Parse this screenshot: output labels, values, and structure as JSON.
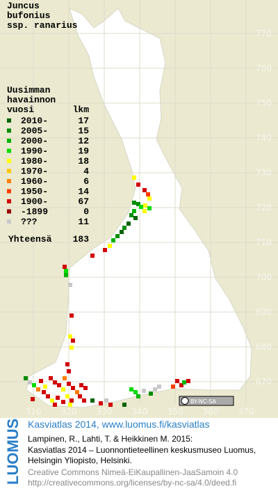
{
  "title": [
    "Juncus",
    "bufonius",
    "ssp. ranarius"
  ],
  "legend": {
    "header": [
      "Uusimman",
      "havainnon"
    ],
    "col_year": "vuosi",
    "col_count": "lkm",
    "items": [
      {
        "label": "2010-",
        "count": "17",
        "color": "#006400"
      },
      {
        "label": "2005-",
        "count": "15",
        "color": "#008c00"
      },
      {
        "label": "2000-",
        "count": "12",
        "color": "#00b400"
      },
      {
        "label": "1990-",
        "count": "19",
        "color": "#00dc00"
      },
      {
        "label": "1980-",
        "count": "18",
        "color": "#ffff00"
      },
      {
        "label": "1970-",
        "count": "4",
        "color": "#ffc800"
      },
      {
        "label": "1960-",
        "count": "6",
        "color": "#ff8000"
      },
      {
        "label": "1950-",
        "count": "14",
        "color": "#ff3c00"
      },
      {
        "label": "1900-",
        "count": "67",
        "color": "#d20000"
      },
      {
        "label": "-1899",
        "count": "0",
        "color": "#960000"
      },
      {
        "label": "???",
        "count": "11",
        "color": "#c8c8c8"
      }
    ],
    "total_label": "Yhteensä",
    "total": "183"
  },
  "grid": {
    "north": [
      "770",
      "760",
      "750",
      "740",
      "730",
      "720",
      "710",
      "700",
      "690",
      "680",
      "670"
    ],
    "east": [
      "310",
      "320",
      "330",
      "340",
      "350",
      "360",
      "370"
    ]
  },
  "license_badge": "BY-NC-SA",
  "footer": {
    "logo": "LUOMUS",
    "site": "Kasviatlas 2014, www.luomus.fi/kasviatlas",
    "citation": [
      "Lampinen, R., Lahti, T. & Heikkinen M. 2015:",
      "Kasviatlas 2014 – Luonnontieteellinen keskusmuseo Luomus,",
      "Helsingin Yliopisto, Helsinki."
    ],
    "license": [
      "Creative Commons Nimeä-EiKaupallinen-JaaSamoin 4.0",
      "http://creativecommons.org/licenses/by-nc-sa/4.0/deed.fi"
    ]
  }
}
